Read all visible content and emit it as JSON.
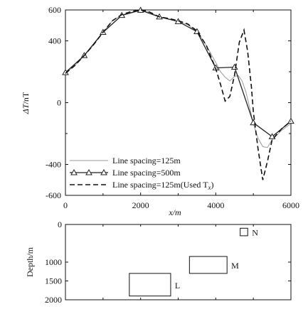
{
  "chart_data": [
    {
      "type": "line",
      "ylabel_main": "ΔT",
      "ylabel_unit": "/nT",
      "xlabel": "x/m",
      "xlim": [
        0,
        6000
      ],
      "ylim": [
        -600,
        600
      ],
      "x_ticks": [
        0,
        2000,
        4000,
        6000
      ],
      "y_ticks": [
        600,
        400,
        0,
        -400,
        -600
      ],
      "legend_position": "bottom-left",
      "series": [
        {
          "name": "Line spacing=125m",
          "style": "solid-thin",
          "color": "#9a9a9a",
          "points": [
            [
              0,
              190
            ],
            [
              250,
              240
            ],
            [
              500,
              305
            ],
            [
              750,
              375
            ],
            [
              1000,
              455
            ],
            [
              1250,
              530
            ],
            [
              1500,
              568
            ],
            [
              1750,
              585
            ],
            [
              2000,
              598
            ],
            [
              2250,
              584
            ],
            [
              2500,
              555
            ],
            [
              2750,
              542
            ],
            [
              3000,
              525
            ],
            [
              3250,
              505
            ],
            [
              3500,
              462
            ],
            [
              3750,
              370
            ],
            [
              4000,
              260
            ],
            [
              4125,
              200
            ],
            [
              4250,
              165
            ],
            [
              4375,
              140
            ],
            [
              4500,
              170
            ],
            [
              4600,
              175
            ],
            [
              4700,
              140
            ],
            [
              4800,
              70
            ],
            [
              4900,
              -30
            ],
            [
              5000,
              -140
            ],
            [
              5125,
              -230
            ],
            [
              5250,
              -285
            ],
            [
              5375,
              -290
            ],
            [
              5500,
              -240
            ],
            [
              5750,
              -180
            ],
            [
              6000,
              -135
            ]
          ]
        },
        {
          "name": "Line spacing=500m",
          "style": "solid-triangles",
          "color": "#222222",
          "points": [
            [
              0,
              195
            ],
            [
              500,
              305
            ],
            [
              1000,
              455
            ],
            [
              1500,
              565
            ],
            [
              2000,
              598
            ],
            [
              2500,
              555
            ],
            [
              3000,
              525
            ],
            [
              3500,
              460
            ],
            [
              4000,
              225
            ],
            [
              4500,
              230
            ],
            [
              5000,
              -130
            ],
            [
              5500,
              -220
            ],
            [
              6000,
              -120
            ]
          ]
        },
        {
          "name": "Line spacing=125m(Used T",
          "name_sub": "x",
          "name_suffix": ")",
          "style": "dashed",
          "color": "#111111",
          "points": [
            [
              0,
              190
            ],
            [
              250,
              240
            ],
            [
              500,
              305
            ],
            [
              750,
              375
            ],
            [
              1000,
              455
            ],
            [
              1250,
              530
            ],
            [
              1500,
              570
            ],
            [
              1750,
              590
            ],
            [
              2000,
              600
            ],
            [
              2125,
              595
            ],
            [
              2250,
              585
            ],
            [
              2500,
              555
            ],
            [
              2750,
              545
            ],
            [
              3000,
              530
            ],
            [
              3250,
              510
            ],
            [
              3500,
              465
            ],
            [
              3750,
              370
            ],
            [
              4000,
              220
            ],
            [
              4125,
              120
            ],
            [
              4250,
              10
            ],
            [
              4375,
              40
            ],
            [
              4500,
              180
            ],
            [
              4625,
              390
            ],
            [
              4750,
              470
            ],
            [
              4850,
              330
            ],
            [
              4950,
              100
            ],
            [
              5000,
              -60
            ],
            [
              5125,
              -300
            ],
            [
              5250,
              -500
            ],
            [
              5375,
              -380
            ],
            [
              5500,
              -240
            ],
            [
              5750,
              -170
            ],
            [
              6000,
              -120
            ]
          ]
        }
      ]
    },
    {
      "type": "diagram",
      "ylabel": "Depth/m",
      "xlim": [
        0,
        6000
      ],
      "ylim": [
        0,
        2000
      ],
      "y_ticks": [
        0,
        1000,
        1500,
        2000
      ],
      "y_tick_labels": [
        "0",
        "1000",
        "1500",
        "2000"
      ],
      "bodies": [
        {
          "label": "N",
          "x0": 4650,
          "x1": 4850,
          "y0": 100,
          "y1": 300
        },
        {
          "label": "M",
          "x0": 3300,
          "x1": 4300,
          "y0": 850,
          "y1": 1300
        },
        {
          "label": "L",
          "x0": 1700,
          "x1": 2800,
          "y0": 1300,
          "y1": 1900
        }
      ]
    }
  ]
}
